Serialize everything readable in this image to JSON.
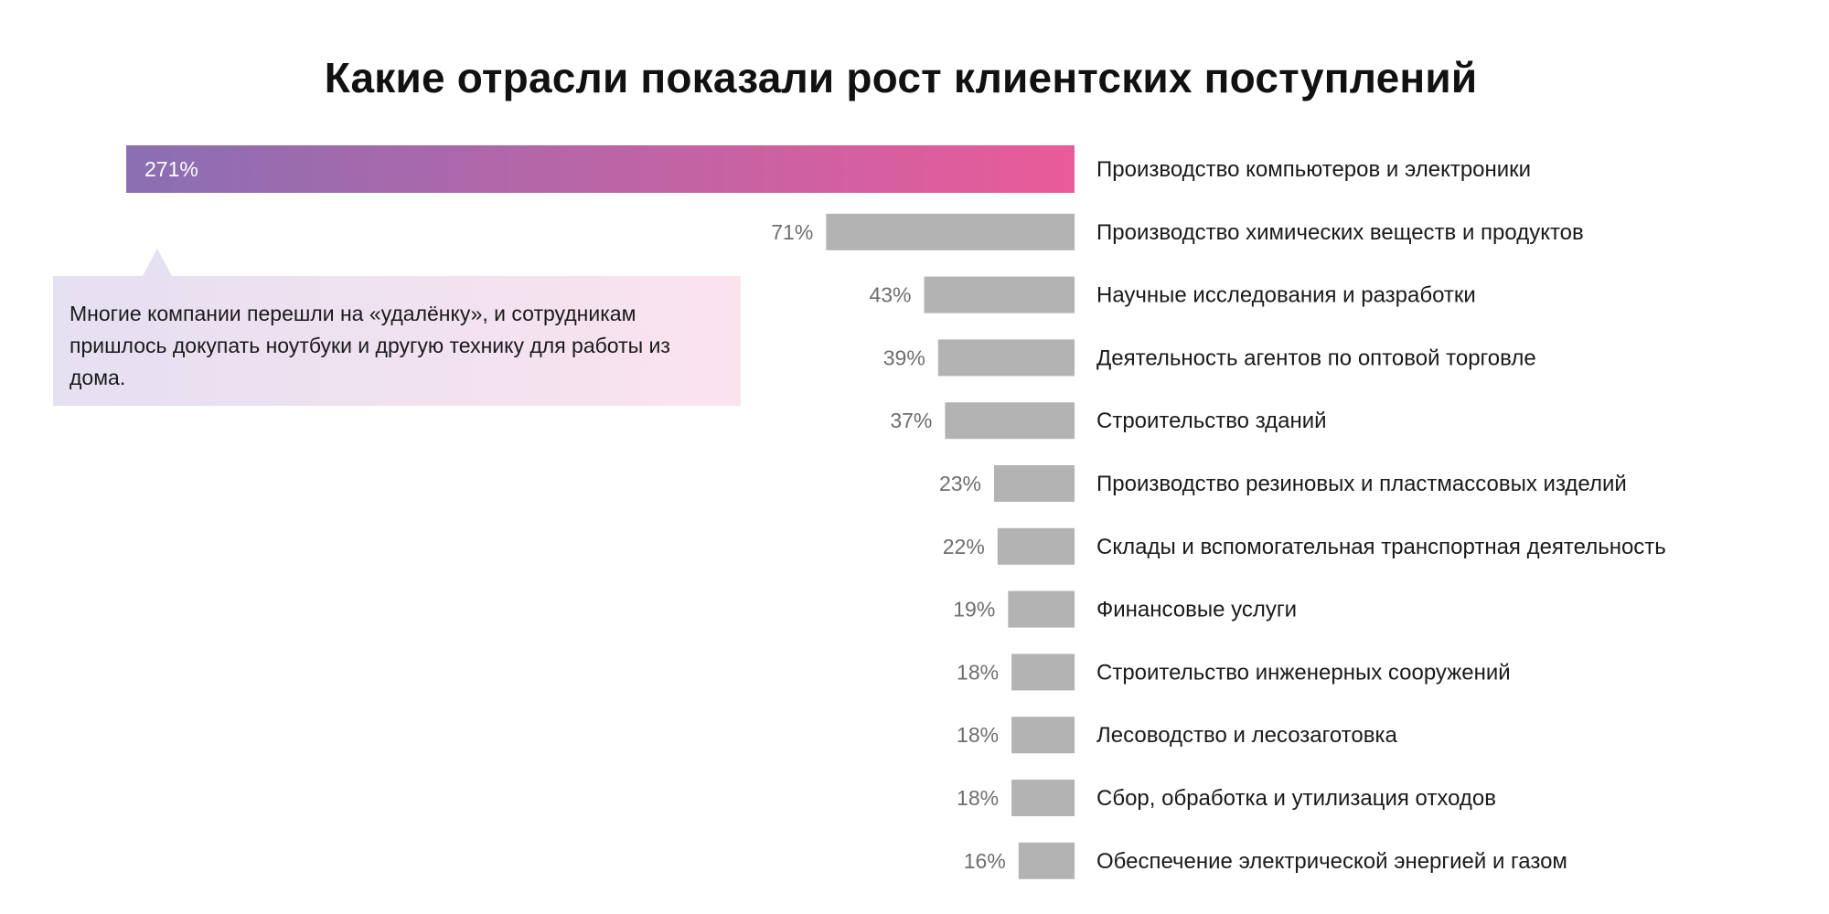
{
  "chart_data": {
    "type": "bar",
    "orientation": "horizontal",
    "title": "Какие отрасли показали рост клиентских поступлений",
    "unit": "%",
    "categories": [
      "Производство компьютеров и электроники",
      "Производство химических веществ и продуктов",
      "Научные исследования и разработки",
      "Деятельность агентов по оптовой торговле",
      "Строительство зданий",
      "Производство резиновых и пластмассовых изделий",
      "Склады и вспомогательная транспортная деятельность",
      "Финансовые услуги",
      "Строительство инженерных сооружений",
      "Лесоводство и лесозаготовка",
      "Сбор, обработка и утилизация отходов",
      "Обеспечение электрической энергией и газом"
    ],
    "values": [
      271,
      71,
      43,
      39,
      37,
      23,
      22,
      19,
      18,
      18,
      18,
      16
    ],
    "value_labels": [
      "271%",
      "71%",
      "43%",
      "39%",
      "37%",
      "23%",
      "22%",
      "19%",
      "18%",
      "18%",
      "18%",
      "16%"
    ],
    "highlight_index": 0,
    "colors": {
      "bar": "#b3b3b3",
      "highlight_start": "#8a6fb3",
      "highlight_end": "#ea5b9a",
      "value_text": "#6e6e6e",
      "highlight_value_text": "#ffffff",
      "label_text": "#1a1a1a"
    },
    "grid": false,
    "legend": "none",
    "annotation": {
      "text": "Многие компании перешли на «удалёнку», и сотрудникам пришлось докупать ноутбуки и другую технику для работы из дома.",
      "target_index": 0
    }
  }
}
